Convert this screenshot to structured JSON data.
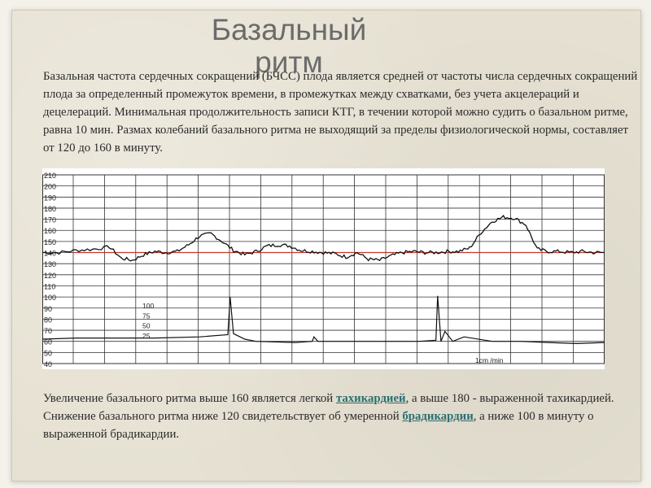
{
  "slide": {
    "title": "Базальный ритм",
    "intro": "Базальная частота сердечных сокращений (БЧСС) плода является средней от частоты числа сердечных сокращений плода за определенный промежуток времени, в промежутках между схватками, без учета акцелераций и децелераций. Минимальная продолжительность записи КТГ, в течении которой можно судить о базальном ритме, равна 10 мин. Размах колебаний базального ритма не выходящий за пределы физиологической нормы, составляет от 120 до 160 в минуту.",
    "para1_before": "Увеличение базального ритма выше 160 является легкой ",
    "para1_link": "тахикардией",
    "para1_after": ", а выше 180 - выраженной тахикардией.",
    "para2_before": "Снижение базального ритма ниже 120 свидетельствует об умеренной ",
    "para2_link": "брадикардии",
    "para2_after": ", а ниже 100 в минуту о выраженной брадикардии."
  },
  "colors": {
    "baseline": "#c0392b",
    "trace": "#111111",
    "grid": "#333333",
    "link": "#2a6f6f"
  },
  "chart_data": {
    "type": "line",
    "y_tick_labels": [
      "210",
      "200",
      "190",
      "180",
      "170",
      "160",
      "150",
      "140",
      "130",
      "120",
      "110",
      "100",
      "90",
      "80",
      "70",
      "60",
      "50",
      "40"
    ],
    "toco_scale_labels": [
      "100",
      "75",
      "50",
      "25"
    ],
    "speed_label": "1cm /min",
    "baseline_value": 140,
    "ylim": [
      40,
      210
    ],
    "fhr_series": {
      "x": [
        0,
        3,
        6,
        9,
        12,
        14,
        16,
        18,
        20,
        22,
        24,
        26,
        28,
        30,
        32,
        34,
        36,
        38,
        40,
        42,
        44,
        46,
        48,
        50,
        52,
        54,
        56,
        58,
        60,
        62,
        64,
        66,
        68,
        70,
        72,
        74,
        76,
        78,
        80,
        82,
        84,
        86,
        88,
        90,
        92,
        94,
        96,
        98,
        100
      ],
      "y": [
        140,
        140,
        142,
        143,
        145,
        135,
        133,
        138,
        141,
        140,
        141,
        147,
        155,
        157,
        150,
        142,
        138,
        141,
        146,
        147,
        146,
        142,
        141,
        140,
        139,
        136,
        140,
        134,
        133,
        137,
        140,
        141,
        140,
        140,
        141,
        141,
        144,
        158,
        168,
        172,
        171,
        165,
        143,
        141,
        141,
        140,
        141,
        140,
        140
      ]
    },
    "toco_series": {
      "x": [
        0,
        6,
        10,
        20,
        28,
        33,
        33.4,
        34,
        36,
        38,
        45,
        48,
        48.3,
        49,
        55,
        60,
        67,
        70,
        70.3,
        70.9,
        71.6,
        73,
        75,
        80,
        85,
        90,
        95,
        100
      ],
      "y": [
        62,
        63,
        63,
        63,
        64,
        66,
        100,
        67,
        62,
        60,
        59,
        60,
        64,
        60,
        60,
        60,
        60,
        61,
        101,
        60,
        69,
        60,
        64,
        60,
        60,
        59,
        58,
        59
      ]
    }
  }
}
